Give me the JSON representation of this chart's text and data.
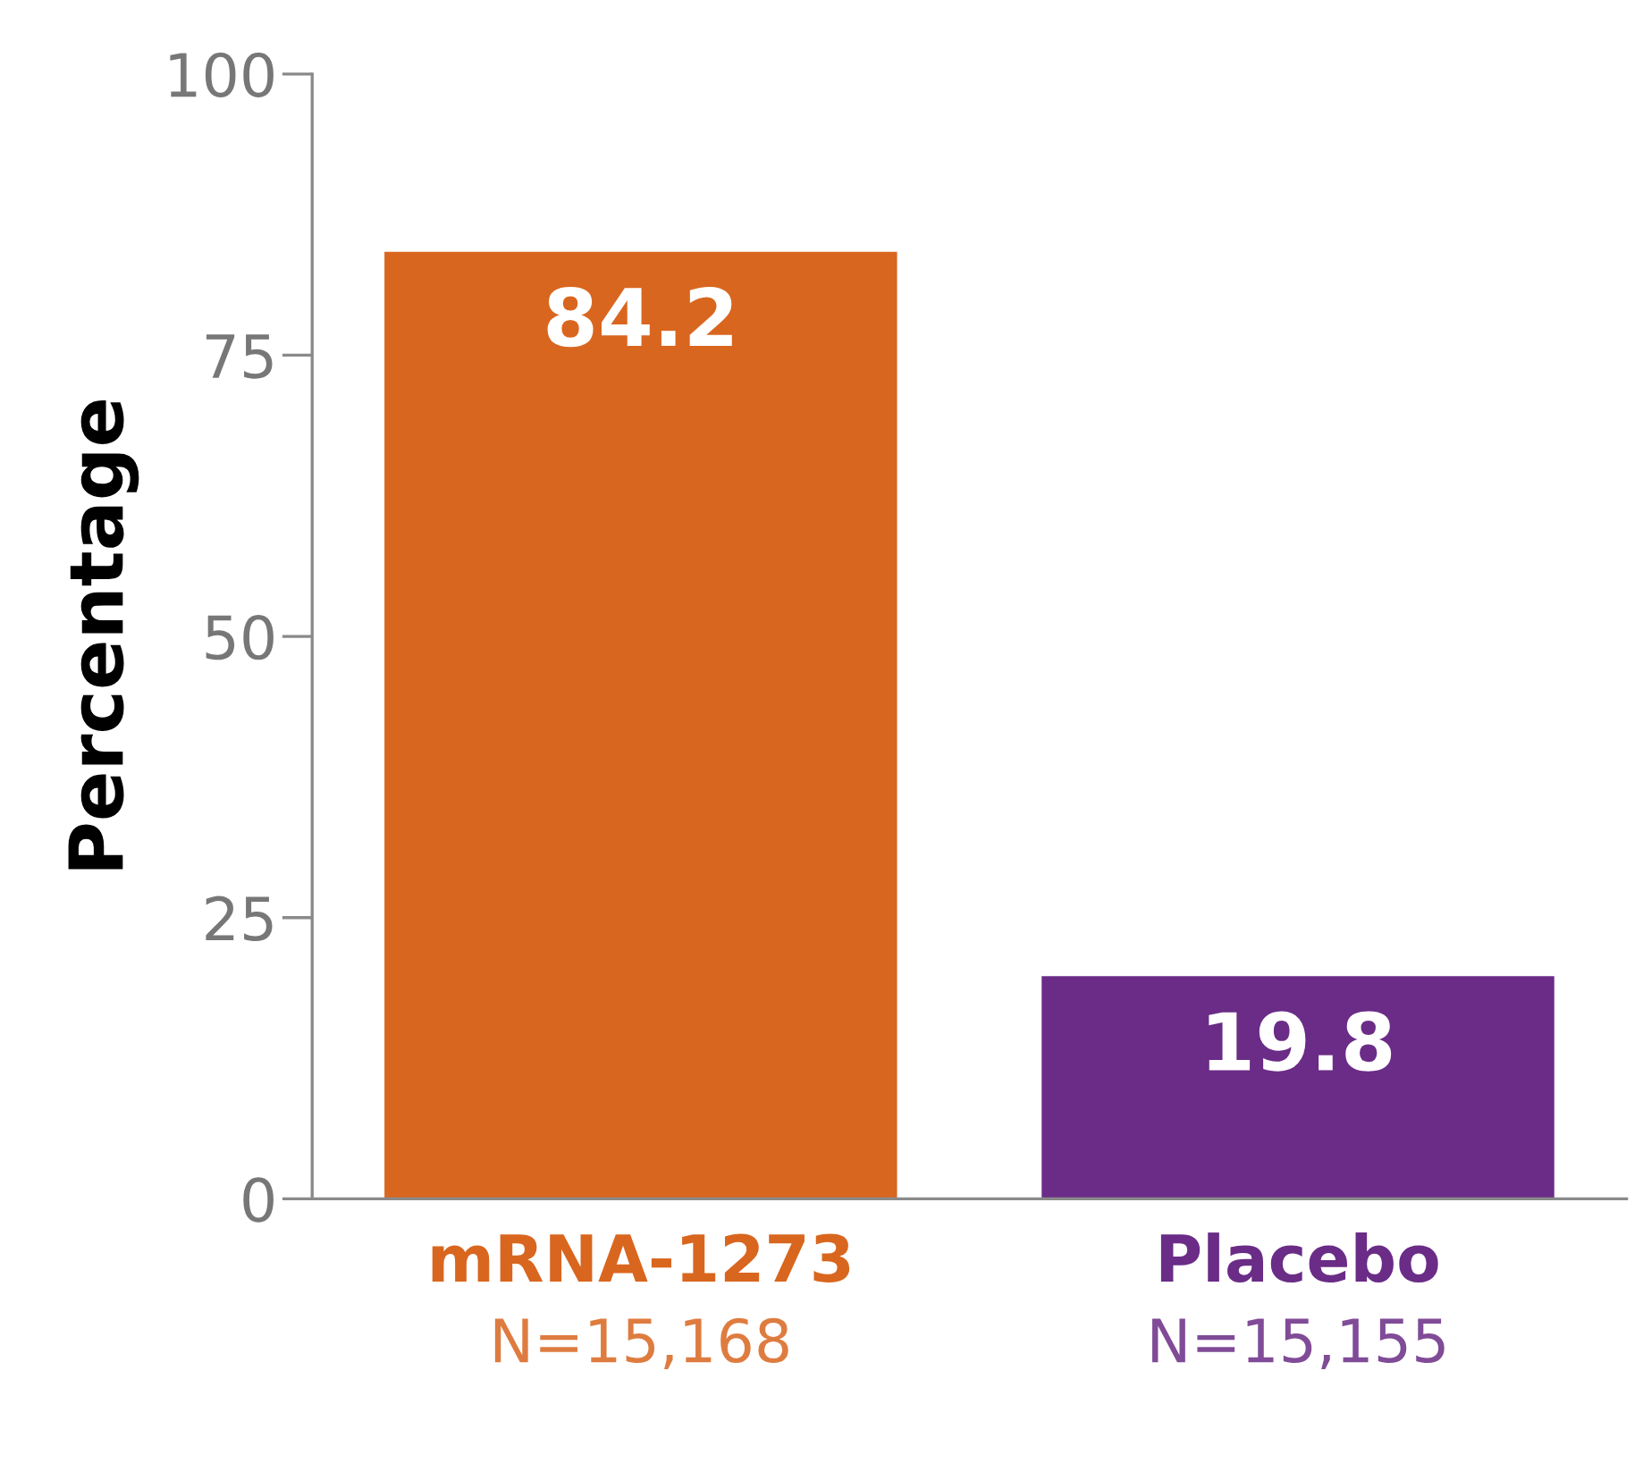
{
  "chart_data": {
    "type": "bar",
    "ylabel": "Percentage",
    "categories": [
      "mRNA-1273\nN=15,168",
      "Placebo\nN=15,155"
    ],
    "values": [
      84.2,
      19.8
    ],
    "colors": [
      "#d9661f",
      "#6a2c86"
    ],
    "ylim": [
      0,
      100
    ],
    "yticks": [
      0,
      25,
      50,
      75,
      100
    ],
    "grid": false,
    "data_labels": true
  }
}
